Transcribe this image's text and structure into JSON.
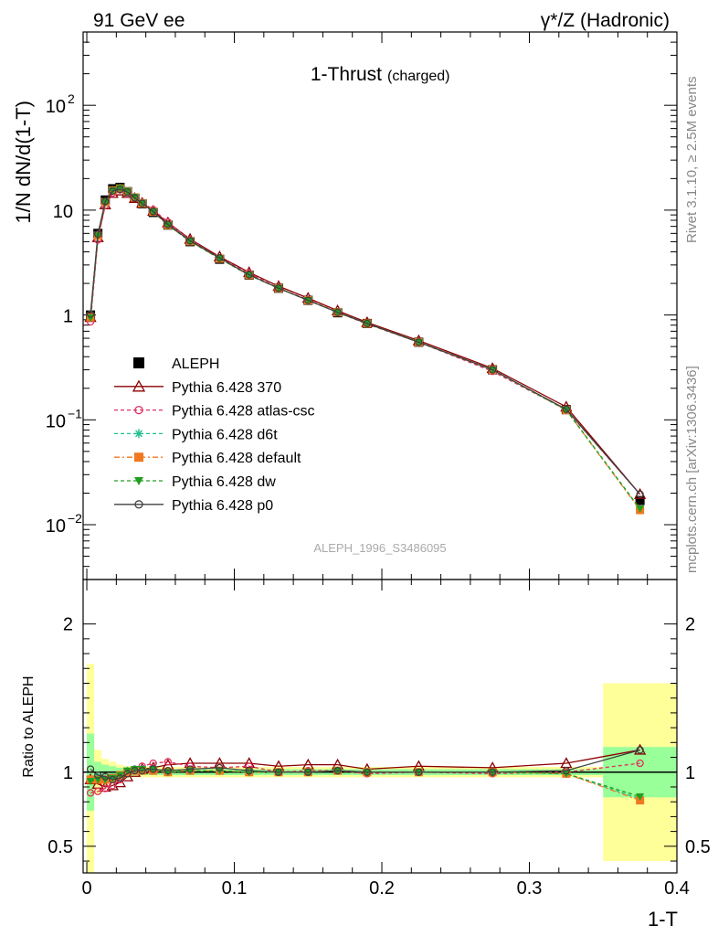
{
  "header": {
    "left": "91 GeV ee",
    "right": "γ*/Z (Hadronic)"
  },
  "side_text": {
    "rivet": "Rivet 3.1.10, ≥ 2.5M events",
    "mcplots": "mcplots.cern.ch [arXiv:1306.3436]"
  },
  "chart_data": [
    {
      "type": "line",
      "title": "1-Thrust",
      "title_suffix": "(charged)",
      "ylabel": "1/N dN/d(1-T)",
      "xlabel": "",
      "yscale": "log",
      "ylim": [
        0.003,
        500
      ],
      "xlim": [
        -0.0025,
        0.4
      ],
      "yticks": [
        {
          "v": 0.01,
          "b": "10",
          "e": "−2"
        },
        {
          "v": 0.1,
          "b": "10",
          "e": "−1"
        },
        {
          "v": 1,
          "b": "1",
          "e": ""
        },
        {
          "v": 10,
          "b": "10",
          "e": ""
        },
        {
          "v": 100,
          "b": "10",
          "e": "2"
        }
      ],
      "watermark": "ALEPH_1996_S3486095",
      "x": [
        0.0025,
        0.0075,
        0.0125,
        0.0175,
        0.0225,
        0.0275,
        0.0325,
        0.0375,
        0.045,
        0.055,
        0.07,
        0.09,
        0.11,
        0.13,
        0.15,
        0.17,
        0.19,
        0.225,
        0.275,
        0.325,
        0.375
      ],
      "series": [
        {
          "name": "ALEPH",
          "color": "#000000",
          "marker": "square",
          "dash": "",
          "values": [
            1.0,
            6.0,
            12.5,
            16.0,
            16.5,
            15.0,
            13.0,
            11.5,
            9.5,
            7.2,
            5.0,
            3.4,
            2.4,
            1.8,
            1.38,
            1.05,
            0.83,
            0.55,
            0.3,
            0.125,
            0.017
          ]
        },
        {
          "name": "Pythia 6.428 370",
          "color": "#8b0000",
          "marker": "triangle",
          "dash": "",
          "values": [
            0.95,
            5.5,
            11.3,
            14.5,
            15.3,
            14.5,
            13.0,
            11.7,
            9.8,
            7.6,
            5.3,
            3.6,
            2.55,
            1.88,
            1.45,
            1.1,
            0.85,
            0.57,
            0.31,
            0.133,
            0.0195
          ]
        },
        {
          "name": "Pythia 6.428 atlas-csc",
          "color": "#e03060",
          "marker": "circle-open",
          "dash": "4,3",
          "values": [
            0.86,
            5.2,
            11.1,
            14.6,
            15.6,
            14.8,
            13.2,
            11.9,
            10.1,
            7.7,
            5.2,
            3.5,
            2.5,
            1.8,
            1.4,
            1.06,
            0.82,
            0.55,
            0.29,
            0.125,
            0.0195
          ]
        },
        {
          "name": "Pythia 6.428 d6t",
          "color": "#20c090",
          "marker": "star",
          "dash": "4,3",
          "values": [
            0.95,
            5.8,
            12.0,
            15.5,
            16.2,
            15.2,
            13.3,
            11.7,
            9.7,
            7.2,
            5.05,
            3.45,
            2.4,
            1.8,
            1.38,
            1.06,
            0.83,
            0.55,
            0.3,
            0.124,
            0.014
          ]
        },
        {
          "name": "Pythia 6.428 default",
          "color": "#f07820",
          "marker": "square",
          "dash": "6,3,2,3",
          "values": [
            0.95,
            5.7,
            11.9,
            15.4,
            16.1,
            15.1,
            13.2,
            11.6,
            9.65,
            7.2,
            5.05,
            3.45,
            2.4,
            1.8,
            1.38,
            1.06,
            0.83,
            0.55,
            0.3,
            0.124,
            0.0138
          ]
        },
        {
          "name": "Pythia 6.428 dw",
          "color": "#20a020",
          "marker": "triangle-down",
          "dash": "4,3",
          "values": [
            0.94,
            5.7,
            11.9,
            15.4,
            16.2,
            15.2,
            13.3,
            11.7,
            9.7,
            7.2,
            5.05,
            3.45,
            2.4,
            1.8,
            1.38,
            1.06,
            0.83,
            0.55,
            0.3,
            0.124,
            0.0142
          ]
        },
        {
          "name": "Pythia 6.428 p0",
          "color": "#404040",
          "marker": "circle-open",
          "dash": "",
          "values": [
            1.02,
            5.9,
            12.1,
            15.2,
            15.8,
            14.9,
            13.1,
            11.6,
            9.7,
            7.3,
            5.1,
            3.5,
            2.42,
            1.8,
            1.38,
            1.06,
            0.83,
            0.55,
            0.3,
            0.126,
            0.0195
          ]
        }
      ]
    },
    {
      "type": "line",
      "title": "",
      "ylabel": "Ratio to ALEPH",
      "xlabel": "1-T",
      "ylim": [
        0.32,
        2.3
      ],
      "xlim": [
        -0.0025,
        0.4
      ],
      "yticks": [
        0.5,
        1,
        2
      ],
      "xticks": [
        0,
        0.1,
        0.2,
        0.3,
        0.4
      ],
      "xtick_labels": [
        "0",
        "0.1",
        "0.2",
        "0.3",
        "0.4"
      ],
      "x": [
        0.0025,
        0.0075,
        0.0125,
        0.0175,
        0.0225,
        0.0275,
        0.0325,
        0.0375,
        0.045,
        0.055,
        0.07,
        0.09,
        0.11,
        0.13,
        0.15,
        0.17,
        0.19,
        0.225,
        0.275,
        0.325,
        0.375
      ],
      "band_edges": [
        0,
        0.005,
        0.01,
        0.015,
        0.02,
        0.025,
        0.03,
        0.035,
        0.04,
        0.05,
        0.06,
        0.08,
        0.1,
        0.12,
        0.14,
        0.16,
        0.18,
        0.2,
        0.25,
        0.3,
        0.35,
        0.4
      ],
      "band_inner": [
        0.26,
        0.07,
        0.05,
        0.04,
        0.03,
        0.025,
        0.02,
        0.02,
        0.02,
        0.02,
        0.02,
        0.02,
        0.02,
        0.02,
        0.02,
        0.02,
        0.02,
        0.02,
        0.02,
        0.02,
        0.17
      ],
      "band_outer": [
        0.73,
        0.15,
        0.09,
        0.07,
        0.05,
        0.04,
        0.035,
        0.035,
        0.035,
        0.035,
        0.035,
        0.035,
        0.035,
        0.035,
        0.035,
        0.035,
        0.035,
        0.035,
        0.035,
        0.035,
        0.6
      ],
      "band_colors": {
        "inner": "#99ff99",
        "outer": "#ffff99"
      },
      "series": [
        {
          "name": "Pythia 6.428 370",
          "values": [
            0.95,
            0.92,
            0.9,
            0.91,
            0.93,
            0.97,
            1.0,
            1.02,
            1.03,
            1.05,
            1.06,
            1.06,
            1.06,
            1.04,
            1.05,
            1.05,
            1.02,
            1.04,
            1.03,
            1.06,
            1.15
          ]
        },
        {
          "name": "Pythia 6.428 atlas-csc",
          "values": [
            0.86,
            0.87,
            0.89,
            0.91,
            0.95,
            0.99,
            1.02,
            1.04,
            1.06,
            1.07,
            1.04,
            1.03,
            1.04,
            1.0,
            1.01,
            1.01,
            0.99,
            1.0,
            0.99,
            1.0,
            1.06
          ]
        },
        {
          "name": "Pythia 6.428 d6t",
          "values": [
            0.95,
            0.97,
            0.96,
            0.97,
            0.98,
            1.01,
            1.02,
            1.02,
            1.02,
            1.0,
            1.01,
            1.01,
            1.0,
            1.0,
            1.0,
            1.01,
            1.0,
            1.0,
            1.0,
            0.99,
            0.82
          ]
        },
        {
          "name": "Pythia 6.428 default",
          "values": [
            0.95,
            0.95,
            0.95,
            0.96,
            0.98,
            1.0,
            1.01,
            1.01,
            1.01,
            1.0,
            1.01,
            1.01,
            1.0,
            1.0,
            1.0,
            1.01,
            1.0,
            1.0,
            1.0,
            0.99,
            0.81
          ]
        },
        {
          "name": "Pythia 6.428 dw",
          "values": [
            0.94,
            0.95,
            0.95,
            0.96,
            0.98,
            1.01,
            1.02,
            1.02,
            1.02,
            1.0,
            1.01,
            1.01,
            1.0,
            1.0,
            1.0,
            1.01,
            1.0,
            1.0,
            1.0,
            0.99,
            0.835
          ]
        },
        {
          "name": "Pythia 6.428 p0",
          "values": [
            1.02,
            0.98,
            0.97,
            0.95,
            0.96,
            0.99,
            1.01,
            1.01,
            1.02,
            1.01,
            1.02,
            1.03,
            1.01,
            1.0,
            1.0,
            1.01,
            1.0,
            1.0,
            1.0,
            1.01,
            1.15
          ]
        }
      ]
    }
  ]
}
